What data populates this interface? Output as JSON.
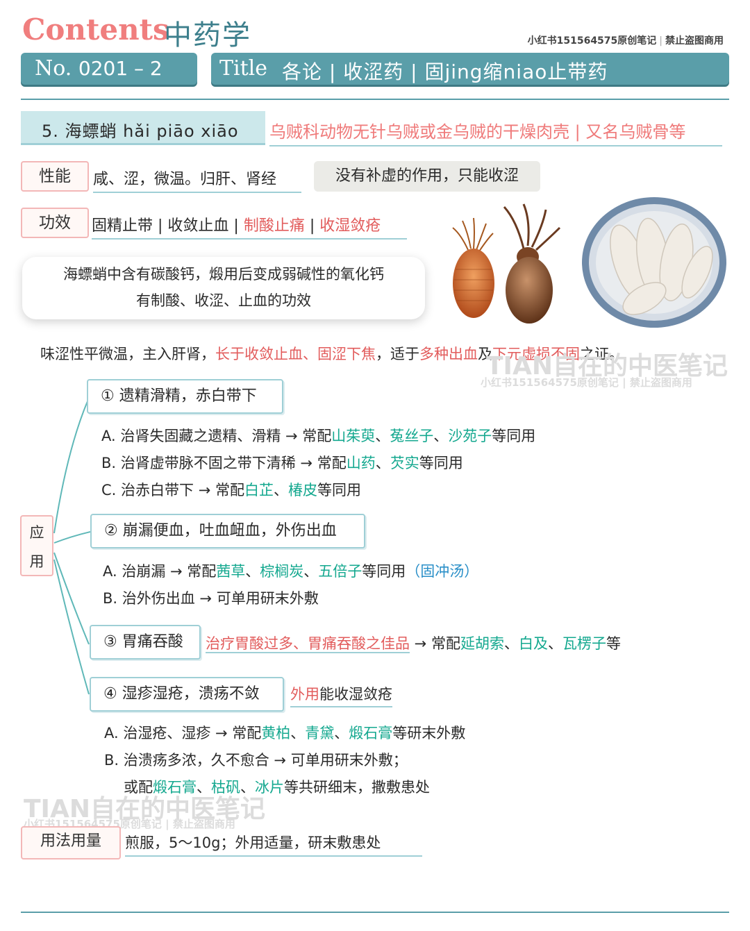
{
  "header": {
    "contents_label": "Contents",
    "subject": "中药学",
    "note_a": "小红书151564575原创笔记",
    "note_b": "禁止盗图商用",
    "no_label": "No.",
    "no_value": "0201 – 2",
    "title_label": "Title",
    "title_value": "各论 | 收涩药 | 固jing缩niao止带药"
  },
  "herb": {
    "name": "5.  海螵蛸  hǎi piāo xiāo",
    "source": "乌贼科动物无针乌贼或金乌贼的干燥肉壳 | 又名乌贼骨等"
  },
  "properties": {
    "label": "性能",
    "value": "咸、涩，微温。归肝、肾经",
    "note": "没有补虚的作用，只能收涩"
  },
  "efficacy": {
    "label": "功效",
    "item1": "固精止带",
    "item2": "收敛止血",
    "item3": "制酸止痛",
    "item4": "收湿敛疮",
    "sep": " | "
  },
  "bubble": {
    "line1": "海螵蛸中含有碳酸钙，煅用后变成弱碱性的氧化钙",
    "line2": "有制酸、收涩、止血的功效"
  },
  "summary": {
    "p1": "味涩性平微温，主入肝肾，",
    "p2": "长于收敛止血、固涩下焦",
    "p3": "，适于",
    "p4": "多种出血",
    "p5": "及",
    "p6": "下元虚损不固",
    "p7": "之证。"
  },
  "watermark": {
    "main": "TIAN自在的中医笔记",
    "sub": "小红书151564575原创笔记 | 禁止盗图商用"
  },
  "application": {
    "label_top": "应",
    "label_bottom": "用",
    "sec1": {
      "title": "① 遗精滑精，赤白带下",
      "a_pre": "A. 治肾失固藏之遗精、滑精 → 常配",
      "a_h1": "山茱萸",
      "a_h2": "菟丝子",
      "a_h3": "沙苑子",
      "a_post": "等同用",
      "b_pre": "B. 治肾虚带脉不固之带下清稀 → 常配",
      "b_h1": "山药",
      "b_h2": "芡实",
      "b_post": "等同用",
      "c_pre": "C. 治赤白带下 → 常配",
      "c_h1": "白芷",
      "c_h2": "椿皮",
      "c_post": "等同用"
    },
    "sec2": {
      "title": "② 崩漏便血，吐血衄血，外伤出血",
      "a_pre": "A. 治崩漏 → 常配",
      "a_h1": "茜草",
      "a_h2": "棕榈炭",
      "a_h3": "五倍子",
      "a_post": "等同用",
      "a_formula": "（固冲汤）",
      "b_text": "B. 治外伤出血 → 可单用研末外敷"
    },
    "sec3": {
      "title": "③ 胃痛吞酸",
      "desc_red": "治疗胃酸过多、胃痛吞酸之佳品",
      "desc_mid": " → 常配",
      "h1": "延胡索",
      "h2": "白及",
      "h3": "瓦楞子",
      "post": "等"
    },
    "sec4": {
      "title": "④ 湿疹湿疮，溃疡不敛",
      "desc_red": "外用",
      "desc_rest": "能收湿敛疮",
      "a_pre": "A. 治湿疮、湿疹 → 常配",
      "a_h1": "黄柏",
      "a_h2": "青黛",
      "a_h3": "煅石膏",
      "a_post": "等研末外敷",
      "b_text": "B. 治溃疡多浓，久不愈合 → 可单用研末外敷；",
      "c_pre": "或配",
      "c_h1": "煅石膏",
      "c_h2": "枯矾",
      "c_h3": "冰片",
      "c_post": "等共研细末，撒敷患处"
    }
  },
  "usage": {
    "label": "用法用量",
    "value": "煎服，5～10g；外用适量，研末敷患处"
  },
  "punct": {
    "dun": "、"
  },
  "colors": {
    "accent": "#5a9ea9",
    "pink": "#f07e7e",
    "red": "#e25c5c",
    "teal": "#14a88f",
    "blue": "#2a8fc8"
  }
}
